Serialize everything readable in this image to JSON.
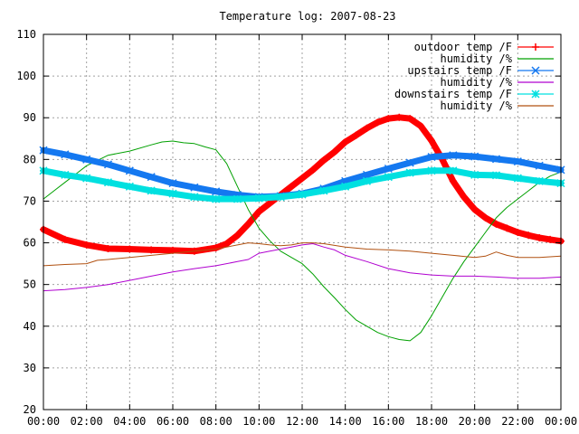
{
  "chart_data": {
    "type": "line",
    "title": "Temperature log: 2007-08-23",
    "xlabel": "",
    "ylabel": "",
    "x_unit": "hour",
    "xlim": [
      0,
      24
    ],
    "ylim": [
      20,
      110
    ],
    "grid": true,
    "legend_position": "top-right",
    "x_ticks": [
      "00:00",
      "02:00",
      "04:00",
      "06:00",
      "08:00",
      "10:00",
      "12:00",
      "14:00",
      "16:00",
      "18:00",
      "20:00",
      "22:00",
      "00:00"
    ],
    "y_ticks": [
      "20",
      "30",
      "40",
      "50",
      "60",
      "70",
      "80",
      "90",
      "100",
      "110"
    ],
    "series": [
      {
        "name": "outdoor temp /F",
        "color": "#ff0000",
        "marker": "plus",
        "x": [
          0,
          1,
          2,
          3,
          4,
          5,
          6,
          7,
          8,
          8.5,
          9,
          9.5,
          10,
          10.5,
          11,
          11.5,
          12,
          12.5,
          13,
          13.5,
          14,
          14.5,
          15,
          15.5,
          16,
          16.5,
          17,
          17.5,
          18,
          18.5,
          19,
          19.5,
          20,
          20.5,
          21,
          21.5,
          22,
          22.5,
          23,
          23.5,
          24
        ],
        "y": [
          63.2,
          60.8,
          59.5,
          58.6,
          58.5,
          58.3,
          58.2,
          58.0,
          58.8,
          59.8,
          61.8,
          64.5,
          67.5,
          69.5,
          71.5,
          73.5,
          75.5,
          77.5,
          79.8,
          81.8,
          84.2,
          85.8,
          87.5,
          88.9,
          89.8,
          90.1,
          89.8,
          88.0,
          84.5,
          80.0,
          74.8,
          71.0,
          68.0,
          66.0,
          64.5,
          63.5,
          62.5,
          61.8,
          61.2,
          60.8,
          60.4
        ]
      },
      {
        "name": "humidity /%",
        "color": "#00a000",
        "marker": "none",
        "x": [
          0,
          0.5,
          1,
          1.5,
          2,
          3,
          4,
          5,
          5.5,
          6,
          6.5,
          7,
          7.5,
          8,
          8.5,
          9,
          9.5,
          10,
          10.5,
          11,
          11.5,
          12,
          12.5,
          13,
          13.5,
          14,
          14.5,
          15,
          15.5,
          16,
          16.5,
          17,
          17.5,
          18,
          18.5,
          19,
          19.5,
          20,
          20.5,
          21,
          21.5,
          22,
          22.5,
          23,
          23.5,
          24
        ],
        "y": [
          70.5,
          72.5,
          74.5,
          76.5,
          78.5,
          81.0,
          82.0,
          83.5,
          84.2,
          84.4,
          84.0,
          83.8,
          83.0,
          82.3,
          79.0,
          73.5,
          68.0,
          63.5,
          60.5,
          58.0,
          56.5,
          55.0,
          52.5,
          49.5,
          46.8,
          44.0,
          41.5,
          40.0,
          38.5,
          37.5,
          36.8,
          36.5,
          38.5,
          42.5,
          47.0,
          51.5,
          55.5,
          59.0,
          62.5,
          66.0,
          68.5,
          70.5,
          72.5,
          74.5,
          76.0,
          77.0
        ]
      },
      {
        "name": "upstairs temp /F",
        "color": "#1478f0",
        "marker": "cross",
        "x": [
          0,
          1,
          2,
          3,
          4,
          5,
          6,
          7,
          8,
          9,
          10,
          11,
          12,
          13,
          14,
          15,
          16,
          17,
          18,
          19,
          20,
          21,
          22,
          23,
          24
        ],
        "y": [
          82.2,
          81.2,
          80.0,
          78.8,
          77.3,
          75.8,
          74.3,
          73.3,
          72.3,
          71.5,
          71.0,
          71.2,
          71.8,
          73.0,
          74.8,
          76.3,
          77.8,
          79.2,
          80.6,
          81.0,
          80.7,
          80.1,
          79.5,
          78.5,
          77.5
        ]
      },
      {
        "name": "humidity /%",
        "color": "#b000d0",
        "marker": "none",
        "x": [
          0,
          1,
          2,
          3,
          4,
          5,
          6,
          7,
          8,
          9,
          9.5,
          10,
          10.5,
          11,
          11.5,
          12,
          12.5,
          13,
          13.5,
          14,
          15,
          16,
          17,
          18,
          19,
          20,
          21,
          22,
          23,
          24
        ],
        "y": [
          48.5,
          48.8,
          49.3,
          50.0,
          51.0,
          52.0,
          53.0,
          53.8,
          54.5,
          55.5,
          56.0,
          57.5,
          58.0,
          58.5,
          59.0,
          59.5,
          59.8,
          59.0,
          58.3,
          57.0,
          55.5,
          53.8,
          52.8,
          52.3,
          52.0,
          52.0,
          51.8,
          51.5,
          51.5,
          51.8
        ]
      },
      {
        "name": "downstairs temp /F",
        "color": "#00e0e0",
        "marker": "star",
        "x": [
          0,
          1,
          2,
          3,
          4,
          5,
          6,
          7,
          8,
          9,
          10,
          11,
          12,
          13,
          14,
          15,
          16,
          17,
          18,
          19,
          20,
          21,
          22,
          23,
          24
        ],
        "y": [
          77.3,
          76.3,
          75.5,
          74.5,
          73.5,
          72.5,
          71.8,
          71.0,
          70.5,
          70.5,
          70.7,
          71.0,
          71.6,
          72.5,
          73.5,
          74.8,
          75.8,
          76.8,
          77.3,
          77.3,
          76.3,
          76.2,
          75.5,
          74.8,
          74.3
        ]
      },
      {
        "name": "humidity /%",
        "color": "#b05010",
        "marker": "none",
        "x": [
          0,
          1,
          2,
          2.5,
          3,
          4,
          5,
          6,
          7,
          8,
          9,
          9.5,
          10,
          10.5,
          11,
          11.5,
          12,
          12.5,
          13,
          14,
          15,
          16,
          17,
          18,
          19,
          20,
          20.5,
          21,
          21.5,
          22,
          23,
          24
        ],
        "y": [
          54.5,
          54.8,
          55.0,
          55.8,
          56.0,
          56.5,
          57.0,
          57.5,
          58.0,
          58.5,
          59.5,
          60.0,
          59.8,
          59.5,
          59.3,
          59.5,
          60.0,
          60.0,
          59.8,
          59.0,
          58.5,
          58.3,
          58.0,
          57.5,
          57.0,
          56.5,
          56.8,
          57.8,
          57.0,
          56.5,
          56.5,
          56.8
        ]
      }
    ]
  }
}
